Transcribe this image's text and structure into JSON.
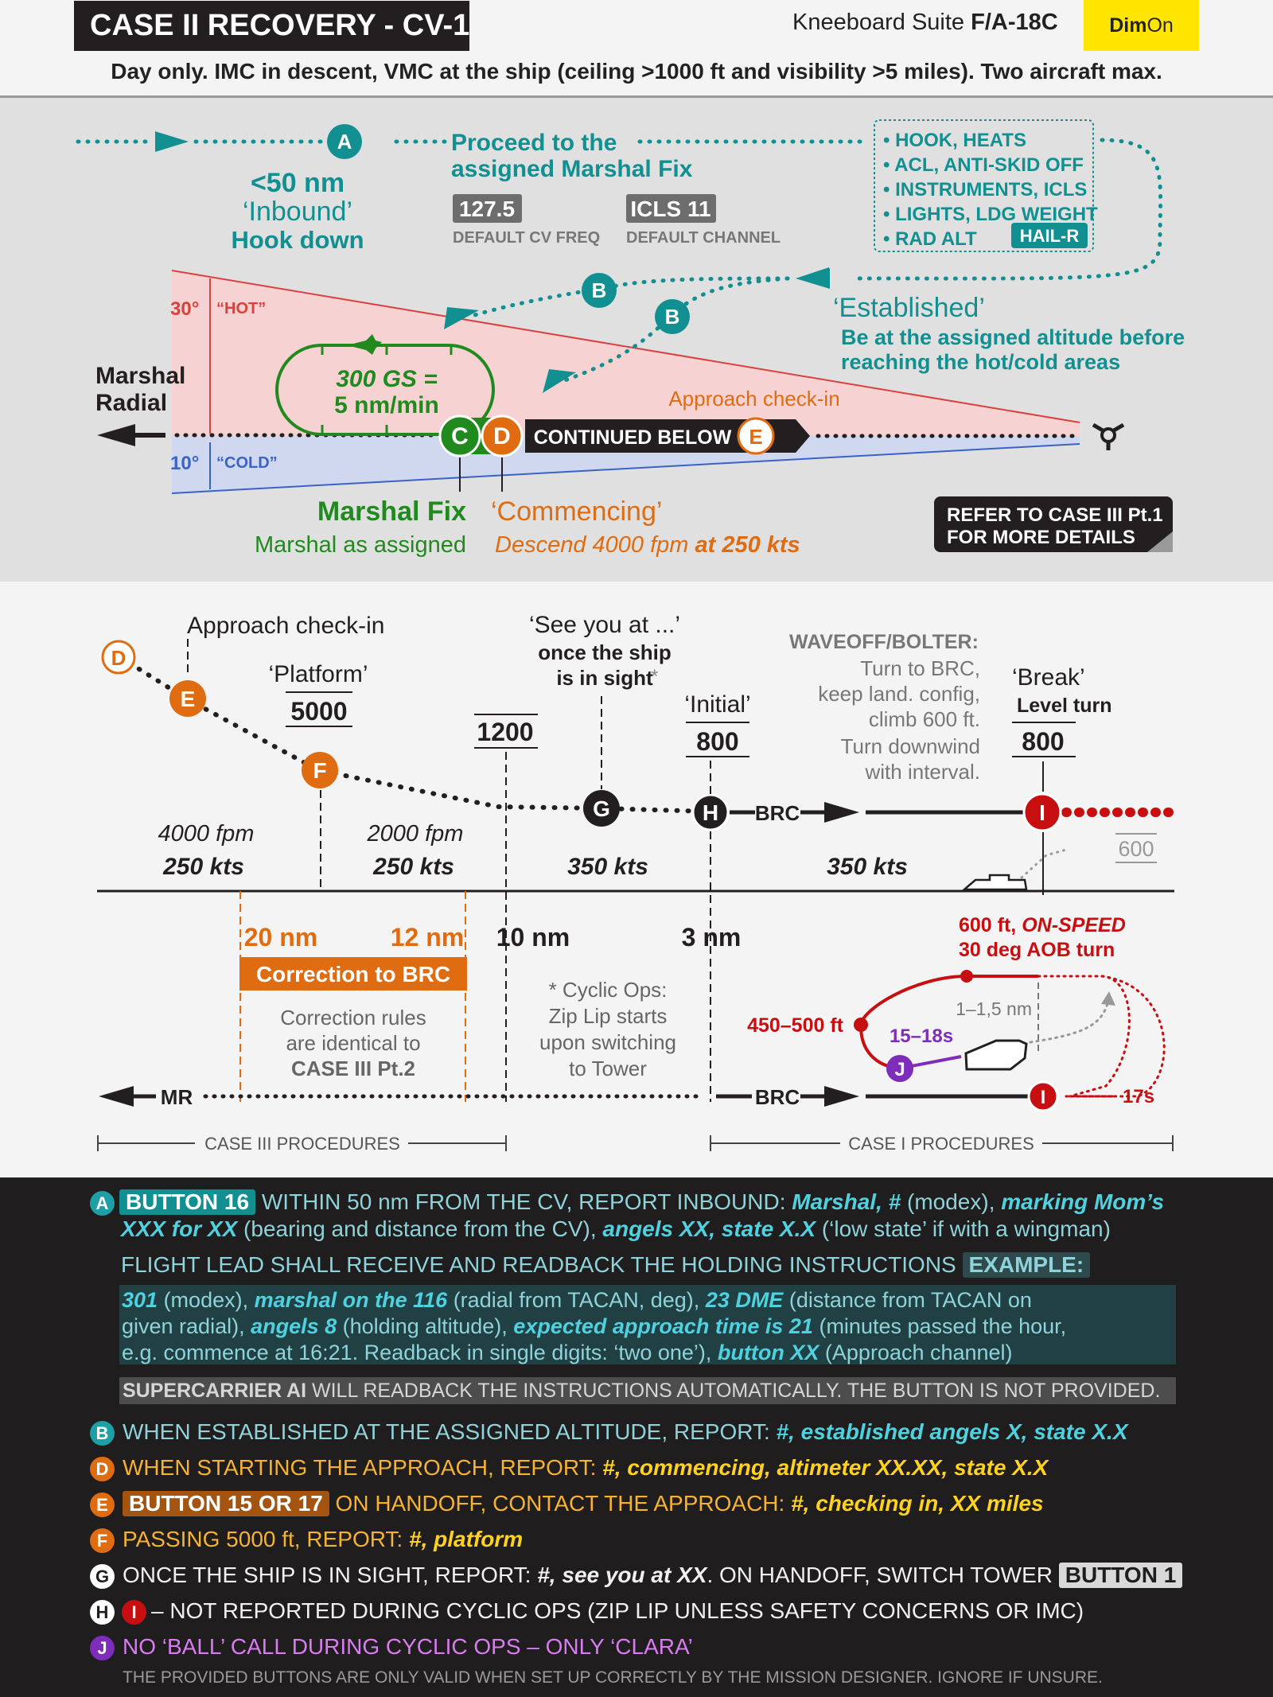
{
  "colors": {
    "teal": "#128f91",
    "green": "#218a1f",
    "orange": "#e06c12",
    "red": "#c70f12",
    "blue": "#3b63c4",
    "purple": "#7d2dba",
    "yellow": "#ffe500",
    "footer_bg": "#1f1d1d",
    "cyan_text": "#4fd1e0"
  },
  "header": {
    "title": "CASE II RECOVERY - CV-1",
    "suite_prefix": "Kneeboard Suite ",
    "suite_aircraft": "F/A-18C",
    "brand_a": "Dim",
    "brand_b": "On",
    "subtitle": "Day only. IMC in descent, VMC at the ship (ceiling >1000 ft and visibility >5 miles). Two aircraft max."
  },
  "top_diagram": {
    "point_a": "A",
    "proceed": [
      "Proceed to the",
      "assigned Marshal Fix"
    ],
    "inbound_distance": "<50 nm",
    "inbound_label": "‘Inbound’",
    "hook_down": "Hook down",
    "freq_value": "127.5",
    "freq_caption": "DEFAULT CV FREQ",
    "channel_value": "ICLS 11",
    "channel_caption": "DEFAULT CHANNEL",
    "checklist": [
      "• HOOK, HEATS",
      "• ACL, ANTI-SKID OFF",
      "• INSTRUMENTS, ICLS",
      "• LIGHTS, LDG WEIGHT",
      "• RAD ALT"
    ],
    "checklist_badge": "HAIL-R",
    "point_b": "B",
    "established": "‘Established’",
    "established_note": [
      "Be at the assigned altitude before",
      "reaching the hot/cold areas"
    ],
    "hot_angle": "30°",
    "hot_label": "“HOT”",
    "cold_angle": "10°",
    "cold_label": "“COLD”",
    "marshal_radial": [
      "Marshal",
      "Radial"
    ],
    "holding": [
      "300 GS =",
      "5 nm/min"
    ],
    "point_c": "C",
    "point_d": "D",
    "point_e": "E",
    "continued": "CONTINUED BELOW",
    "approach_checkin": "Approach check-in",
    "marshal_fix": "Marshal Fix",
    "marshal_fix_sub": "Marshal as assigned",
    "commencing": "‘Commencing’",
    "commencing_sub_a": "Descend 4000 fpm ",
    "commencing_sub_b": "at 250 kts",
    "refer": [
      "REFER TO CASE III Pt.1",
      "FOR MORE DETAILS"
    ]
  },
  "profile": {
    "d": "D",
    "e": "E",
    "f": "F",
    "g": "G",
    "h": "H",
    "i": "I",
    "j": "J",
    "approach_checkin": "Approach check-in",
    "platform": "‘Platform’",
    "platform_alt": "5000",
    "alt_1200": "1200",
    "see_you": "‘See you at ...’",
    "see_you_sub": [
      "once the ship",
      "is in sight"
    ],
    "asterisk": "*",
    "initial": "‘Initial’",
    "initial_alt": "800",
    "waveoff_title": "WAVEOFF/BOLTER:",
    "waveoff_lines": [
      "Turn to BRC,",
      "keep land. config,",
      "climb 600 ft.",
      "Turn downwind",
      "with interval."
    ],
    "break": "‘Break’",
    "break_sub": "Level turn",
    "break_alt": "800",
    "brc": "BRC",
    "alt_600": "600",
    "seg1_rate": "4000 fpm",
    "seg1_speed": "250 kts",
    "seg2_rate": "2000 fpm",
    "seg2_speed": "250 kts",
    "seg3_speed": "350 kts",
    "seg4_speed": "350 kts",
    "dist_20": "20 nm",
    "dist_12": "12 nm",
    "dist_10": "10 nm",
    "dist_3": "3 nm",
    "correction": "Correction to BRC",
    "correction_note": [
      "Correction rules",
      "are identical to",
      "CASE III Pt.2"
    ],
    "cyclic_note": [
      "* Cyclic Ops:",
      "Zip Lip starts",
      "upon switching",
      "to Tower"
    ],
    "pattern_title_a": "600 ft, ",
    "pattern_title_b": "ON-SPEED",
    "pattern_title_2": "30 deg AOB turn",
    "pattern_alt": "450–500 ft",
    "pattern_dist": "1–1,5 nm",
    "pattern_time": "15–18s",
    "pattern_17s": "17s",
    "mr": "MR",
    "case3": "CASE III PROCEDURES",
    "case1": "CASE I PROCEDURES"
  },
  "footer": {
    "a_letter": "A",
    "a_button": "BUTTON 16",
    "a_text1": " WITHIN 50 nm FROM THE CV, REPORT INBOUND: ",
    "a_i1": "Marshal, #",
    "a_t2": " (modex), ",
    "a_i2": "marking Mom’s",
    "a_i3": "XXX for XX",
    "a_t3": " (bearing and distance from the CV), ",
    "a_i4": "angels XX, state X.X",
    "a_t4": " (‘low state’ if with a wingman)",
    "a_lead": "FLIGHT LEAD SHALL RECEIVE AND READBACK THE HOLDING INSTRUCTIONS",
    "a_example": "EXAMPLE:",
    "ex1_i": "301",
    "ex1_t": " (modex), ",
    "ex1_i2": "marshal on the 116",
    "ex1_t2": " (radial from TACAN, deg), ",
    "ex1_i3": "23 DME",
    "ex1_t3": " (distance from TACAN on",
    "ex2_t": "given radial), ",
    "ex2_i": "angels 8",
    "ex2_t2": " (holding altitude), ",
    "ex2_i2": "expected approach time is 21",
    "ex2_t3": " (minutes passed the hour,",
    "ex3_t": "e.g. commence at 16:21. Readback in single digits: ‘two one’), ",
    "ex3_i": "button XX",
    "ex3_t2": " (Approach channel)",
    "sc_bold": "SUPERCARRIER AI",
    "sc_text": " WILL READBACK THE INSTRUCTIONS AUTOMATICALLY. THE BUTTON IS NOT PROVIDED.",
    "b_letter": "B",
    "b_text": "WHEN ESTABLISHED AT THE ASSIGNED ALTITUDE, REPORT: ",
    "b_i": "#, established angels X, state X.X",
    "d_letter": "D",
    "d_text": "WHEN STARTING THE APPROACH, REPORT: ",
    "d_i": "#, commencing, altimeter XX.XX, state X.X",
    "e_letter": "E",
    "e_button": "BUTTON 15 OR 17",
    "e_text": " ON HANDOFF, CONTACT THE APPROACH: ",
    "e_i": "#, checking in, XX miles",
    "f_letter": "F",
    "f_text": "PASSING 5000 ft, REPORT: ",
    "f_i": "#, platform",
    "g_letter": "G",
    "g_text": "ONCE THE SHIP IS IN SIGHT, REPORT: ",
    "g_i": "#, see you at XX",
    "g_text2": ". ON HANDOFF, SWITCH TOWER ",
    "g_button": "BUTTON 1",
    "h_letter": "H",
    "i_letter": "I",
    "hi_text": " – NOT REPORTED DURING CYCLIC OPS (ZIP LIP UNLESS SAFETY CONCERNS OR IMC)",
    "j_letter": "J",
    "j_text": "NO ‘BALL’ CALL DURING CYCLIC OPS – ONLY ‘CLARA’",
    "disclaimer": "THE PROVIDED BUTTONS ARE ONLY VALID WHEN SET UP CORRECTLY BY THE MISSION DESIGNER. IGNORE IF UNSURE."
  }
}
